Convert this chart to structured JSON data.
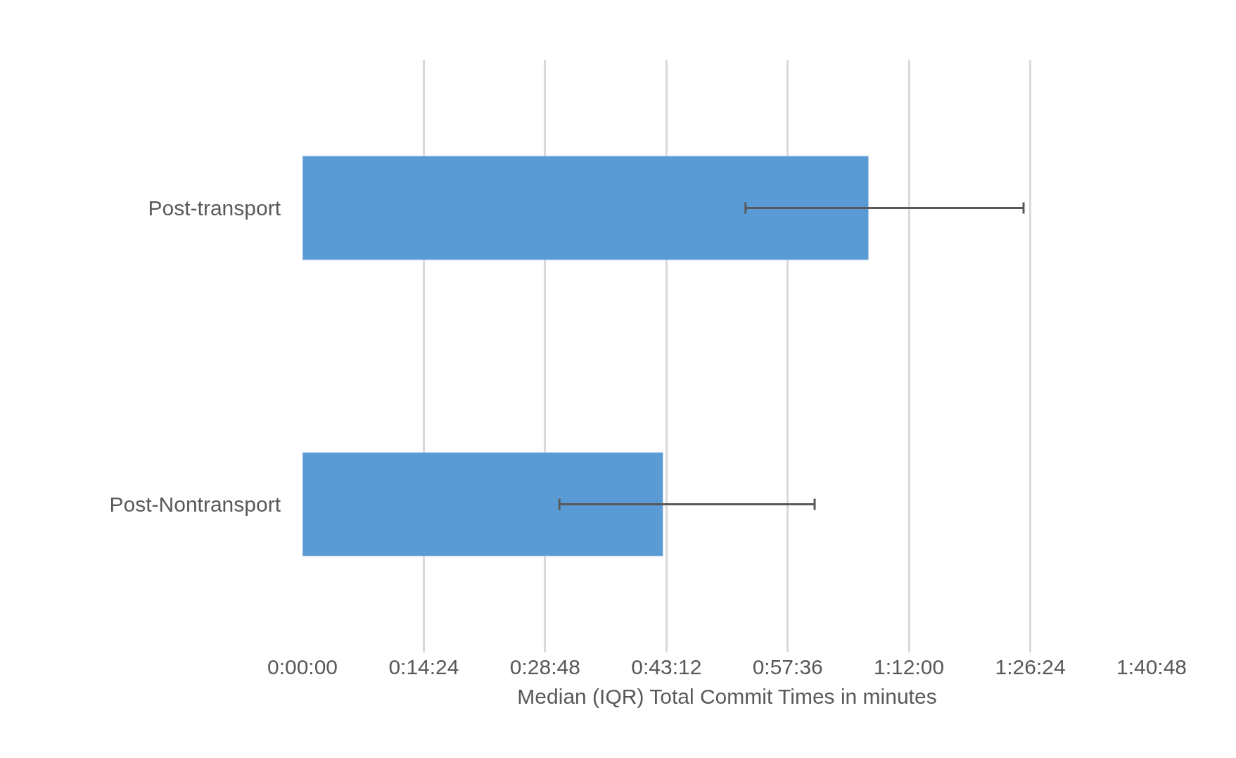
{
  "chart_data": {
    "type": "bar",
    "orientation": "horizontal",
    "xlabel": "Median (IQR) Total Commit Times in minutes",
    "categories": [
      "Post-transport",
      "Post-Nontransport"
    ],
    "values": [
      67.2,
      42.8
    ],
    "errors": [
      [
        52.6,
        85.6
      ],
      [
        30.5,
        60.8
      ]
    ],
    "color": "#5b9bd5",
    "xlim": [
      0,
      100.8
    ],
    "xticks": [
      {
        "value": 0,
        "label": "0:00:00"
      },
      {
        "value": 14.4,
        "label": "0:14:24"
      },
      {
        "value": 28.8,
        "label": "0:28:48"
      },
      {
        "value": 43.2,
        "label": "0:43:12"
      },
      {
        "value": 57.6,
        "label": "0:57:36"
      },
      {
        "value": 72,
        "label": "1:12:00"
      },
      {
        "value": 86.4,
        "label": "1:26:24"
      },
      {
        "value": 100.8,
        "label": "1:40:48"
      }
    ],
    "grid": "x"
  }
}
